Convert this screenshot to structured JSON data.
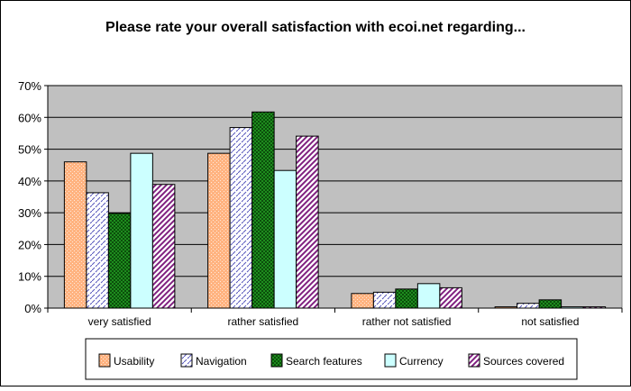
{
  "chart_data": {
    "type": "bar",
    "title": "Please rate your overall satisfaction with ecoi.net regarding...",
    "xlabel": "",
    "ylabel": "",
    "ylim": [
      0,
      70
    ],
    "yticks": [
      0,
      10,
      20,
      30,
      40,
      50,
      60,
      70
    ],
    "ytick_labels": [
      "0%",
      "10%",
      "20%",
      "30%",
      "40%",
      "50%",
      "60%",
      "70%"
    ],
    "grid": true,
    "legend_position": "bottom",
    "categories": [
      "very satisfied",
      "rather satisfied",
      "rather not satisfied",
      "not satisfied"
    ],
    "series": [
      {
        "name": "Usability",
        "color": "#FFB380",
        "pattern": "dots",
        "values": [
          46,
          48.7,
          4.6,
          0.4
        ]
      },
      {
        "name": "Navigation",
        "color": "#7777CC",
        "pattern": "dashed-diagonal",
        "values": [
          36.3,
          56.8,
          5,
          1.5
        ]
      },
      {
        "name": "Search features",
        "color": "#1E8C1E",
        "pattern": "checker",
        "values": [
          29.8,
          61.7,
          6,
          2.6
        ]
      },
      {
        "name": "Currency",
        "color": "#CCFFFF",
        "pattern": "solid",
        "values": [
          48.7,
          43.3,
          7.7,
          0.4
        ]
      },
      {
        "name": "Sources covered",
        "color": "#802080",
        "pattern": "diagonal-stripes",
        "values": [
          38.9,
          54.1,
          6.4,
          0.4
        ]
      }
    ]
  }
}
